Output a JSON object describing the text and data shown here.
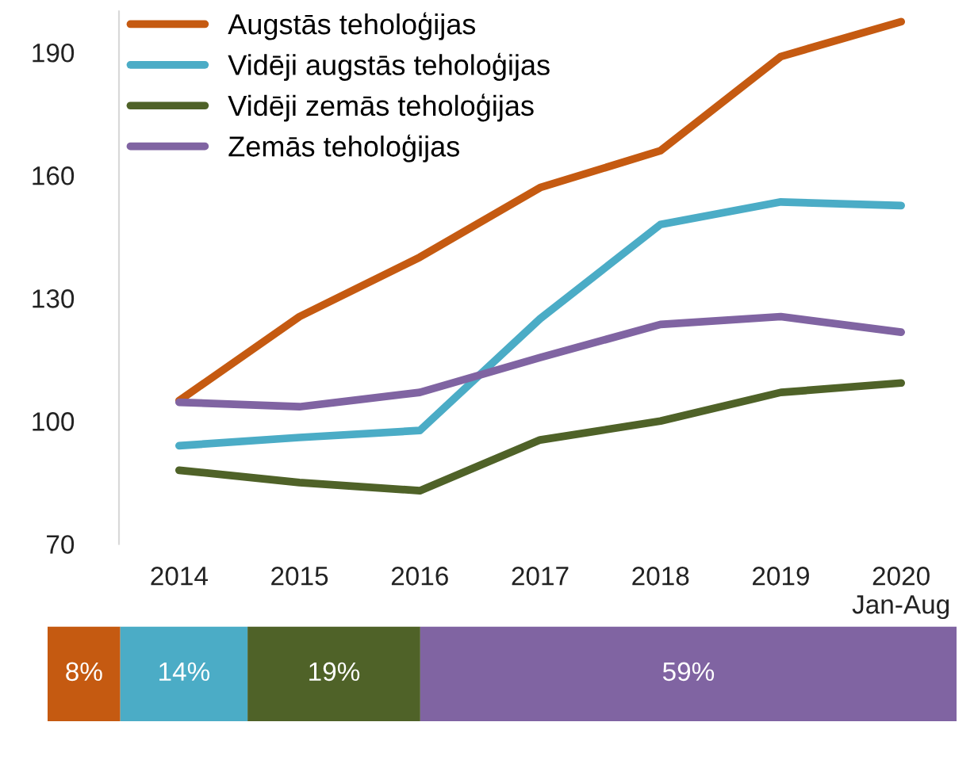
{
  "chart_data": [
    {
      "type": "line",
      "categories": [
        "2014",
        "2015",
        "2016",
        "2017",
        "2018",
        "2019",
        "2020\nJan-Aug"
      ],
      "series": [
        {
          "name": "Augstās teholoģijas",
          "color": "#c55a11",
          "values": [
            105,
            125.5,
            140,
            157,
            166,
            189,
            197.5
          ]
        },
        {
          "name": "Vidēji augstās teholoģijas",
          "color": "#4bacc6",
          "values": [
            94,
            96,
            97.7,
            125,
            148,
            153.5,
            152.6
          ]
        },
        {
          "name": "Vidēji zemās teholoģijas",
          "color": "#4f6228",
          "values": [
            88,
            85,
            83,
            95.4,
            100,
            107,
            109.3
          ]
        },
        {
          "name": "Zemās teholoģijas",
          "color": "#8064a2",
          "values": [
            104.6,
            103.5,
            107,
            115.5,
            123.6,
            125.5,
            121.7
          ]
        }
      ],
      "ylim": [
        70,
        200
      ],
      "yticks": [
        70,
        100,
        130,
        160,
        190
      ],
      "legend": "top left",
      "grid": false,
      "marker": "none",
      "line_style": "solid"
    },
    {
      "type": "bar",
      "orientation": "horizontal",
      "stacked": true,
      "categories": [
        null
      ],
      "tick_labels": false,
      "series": [
        {
          "color": "#c55a11",
          "values": [
            8
          ],
          "value_labels": [
            "8%"
          ]
        },
        {
          "color": "#4bacc6",
          "values": [
            14
          ],
          "value_labels": [
            "14%"
          ]
        },
        {
          "color": "#4f6228",
          "values": [
            19
          ],
          "value_labels": [
            "19%"
          ]
        },
        {
          "color": "#8064a2",
          "values": [
            59
          ],
          "value_labels": [
            "59%"
          ]
        }
      ]
    }
  ]
}
